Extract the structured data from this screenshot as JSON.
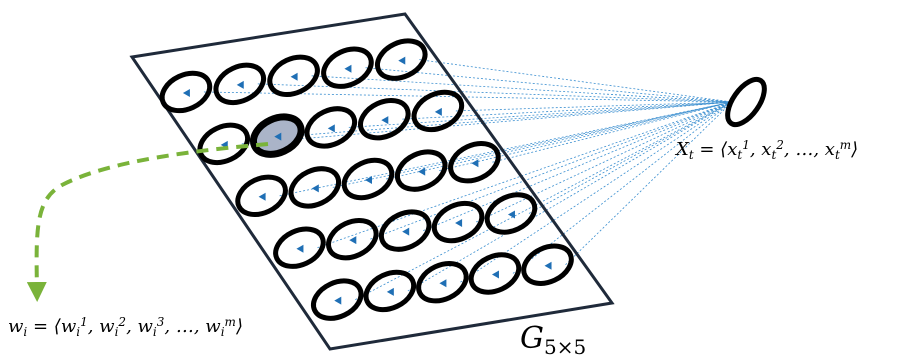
{
  "diagram": {
    "grid_label": "G",
    "grid_label_sub": "5×5",
    "input_label_html_parts": {
      "lhs": "X",
      "lhs_sub": "t",
      "rhs": "= ⟨x",
      "rhs_full": "X_t = ⟨x_t^1, x_t^2, …, x_t^m⟩"
    },
    "weight_label": "w_i = ⟨w_i^1, w_i^2, w_i^3, …, w_i^m⟩",
    "rows": 5,
    "cols": 5,
    "winner": {
      "row": 1,
      "col": 1
    },
    "colors": {
      "frame": "#1f2a3a",
      "node_ring": "#000000",
      "arrow": "#1f6fb5",
      "connection": "#3b8fd0",
      "winner_fill": "#aab4c8",
      "highlight_path": "#7ab33a"
    }
  }
}
